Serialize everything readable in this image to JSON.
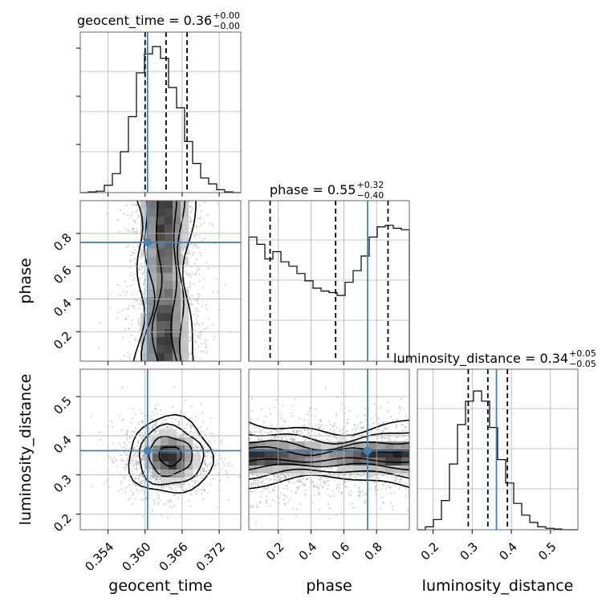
{
  "chart_data": {
    "type": "corner",
    "truth_color": "#4682b4",
    "parameters": [
      "geocent_time",
      "phase",
      "luminosity_distance"
    ],
    "truths": {
      "geocent_time": 0.3604,
      "phase": 0.745,
      "luminosity_distance": 0.362
    },
    "quantiles": {
      "geocent_time": [
        0.36,
        0.3634,
        0.3668
      ],
      "phase": [
        0.15,
        0.55,
        0.87
      ],
      "luminosity_distance": [
        0.29,
        0.34,
        0.39
      ]
    },
    "titles": [
      {
        "param": "geocent_time",
        "text": "geocent_time = 0.36",
        "sup": "+0.00",
        "sub": "−0.00"
      },
      {
        "param": "phase",
        "text": "phase = 0.55",
        "sup": "+0.32",
        "sub": "−0.40"
      },
      {
        "param": "luminosity_distance",
        "text": "luminosity_distance = 0.34",
        "sup": "+0.05",
        "sub": "−0.05"
      }
    ],
    "axis_labels": {
      "geocent_time": "geocent_time",
      "phase": "phase",
      "luminosity_distance": "luminosity_distance"
    },
    "ranges": {
      "geocent_time": [
        0.3495,
        0.3755
      ],
      "phase": [
        0.02,
        1.0
      ],
      "luminosity_distance": [
        0.16,
        0.57
      ]
    },
    "ticks": {
      "geocent_time": [
        "0.354",
        "0.360",
        "0.366",
        "0.372"
      ],
      "phase": [
        "0.2",
        "0.4",
        "0.6",
        "0.8"
      ],
      "luminosity_distance": [
        "0.2",
        "0.3",
        "0.4",
        "0.5"
      ]
    },
    "histograms": {
      "geocent_time": [
        0,
        0.005,
        0.01,
        0.05,
        0.13,
        0.28,
        0.52,
        0.82,
        0.95,
        1.0,
        0.92,
        0.72,
        0.58,
        0.35,
        0.2,
        0.1,
        0.06,
        0.02,
        0.005,
        0
      ],
      "phase": [
        0.85,
        0.8,
        0.7,
        0.75,
        0.68,
        0.65,
        0.6,
        0.55,
        0.5,
        0.48,
        0.47,
        0.45,
        0.54,
        0.62,
        0.72,
        0.85,
        0.92,
        0.93,
        0.91,
        0.9
      ],
      "luminosity_distance": [
        0,
        0.02,
        0.07,
        0.2,
        0.45,
        0.72,
        0.88,
        0.95,
        0.88,
        0.7,
        0.48,
        0.32,
        0.18,
        0.1,
        0.05,
        0.02,
        0.01,
        0.005,
        0,
        0
      ]
    },
    "grid": true
  }
}
